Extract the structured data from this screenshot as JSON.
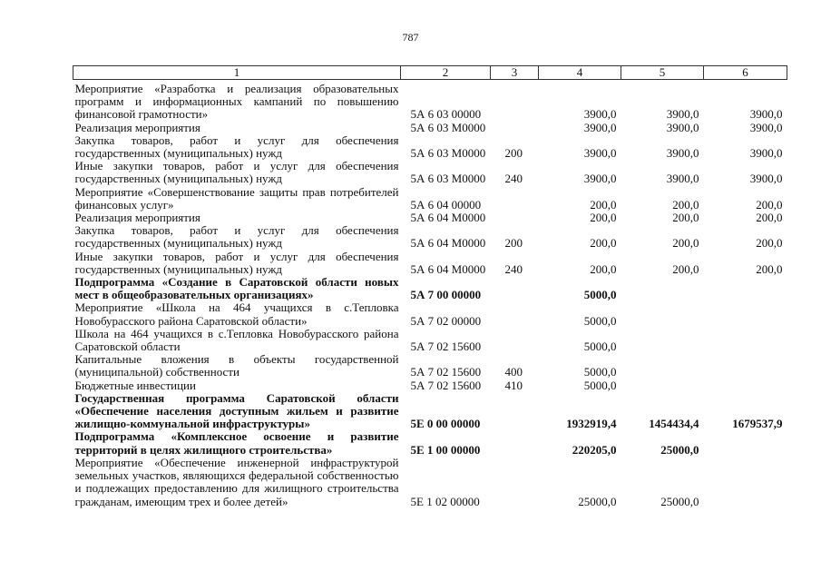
{
  "page_number": "787",
  "table": {
    "headers": [
      "1",
      "2",
      "3",
      "4",
      "5",
      "6"
    ],
    "rows": [
      {
        "name": "Мероприятие «Разработка и реализация образовательных программ и информационных кампаний по повышению финансовой грамотности»",
        "code": "5А 6 03 00000",
        "type": "",
        "v4": "3900,0",
        "v5": "3900,0",
        "v6": "3900,0",
        "bold": false
      },
      {
        "name": "Реализация мероприятия",
        "code": "5А 6 03 М0000",
        "type": "",
        "v4": "3900,0",
        "v5": "3900,0",
        "v6": "3900,0",
        "bold": false
      },
      {
        "name": "Закупка товаров, работ и услуг для обеспечения государственных (муниципальных) нужд",
        "code": "5А 6 03 М0000",
        "type": "200",
        "v4": "3900,0",
        "v5": "3900,0",
        "v6": "3900,0",
        "bold": false
      },
      {
        "name": "Иные закупки товаров, работ и услуг для обеспечения государственных (муниципальных) нужд",
        "code": "5А 6 03 М0000",
        "type": "240",
        "v4": "3900,0",
        "v5": "3900,0",
        "v6": "3900,0",
        "bold": false
      },
      {
        "name": "Мероприятие «Совершенствование защиты прав потребителей финансовых услуг»",
        "code": "5А 6 04 00000",
        "type": "",
        "v4": "200,0",
        "v5": "200,0",
        "v6": "200,0",
        "bold": false
      },
      {
        "name": "Реализация мероприятия",
        "code": "5А 6 04 М0000",
        "type": "",
        "v4": "200,0",
        "v5": "200,0",
        "v6": "200,0",
        "bold": false
      },
      {
        "name": "Закупка товаров, работ и услуг для обеспечения государственных (муниципальных) нужд",
        "code": "5А 6 04 М0000",
        "type": "200",
        "v4": "200,0",
        "v5": "200,0",
        "v6": "200,0",
        "bold": false
      },
      {
        "name": "Иные закупки товаров, работ и услуг для обеспечения государственных (муниципальных) нужд",
        "code": "5А 6 04 М0000",
        "type": "240",
        "v4": "200,0",
        "v5": "200,0",
        "v6": "200,0",
        "bold": false
      },
      {
        "name": "Подпрограмма «Создание в Саратовской области новых мест в общеобразовательных организациях»",
        "code": "5А 7 00 00000",
        "type": "",
        "v4": "5000,0",
        "v5": "",
        "v6": "",
        "bold": true
      },
      {
        "name": "Мероприятие «Школа на 464 учащихся в с.Тепловка Новобурасского района Саратовской области»",
        "code": "5А 7 02 00000",
        "type": "",
        "v4": "5000,0",
        "v5": "",
        "v6": "",
        "bold": false
      },
      {
        "name": "Школа на 464 учащихся в с.Тепловка Новобурасского района Саратовской области",
        "code": "5А 7 02 15600",
        "type": "",
        "v4": "5000,0",
        "v5": "",
        "v6": "",
        "bold": false
      },
      {
        "name": "Капитальные вложения в объекты государственной (муниципальной) собственности",
        "code": "5А 7 02 15600",
        "type": "400",
        "v4": "5000,0",
        "v5": "",
        "v6": "",
        "bold": false
      },
      {
        "name": "Бюджетные инвестиции",
        "code": "5А 7 02 15600",
        "type": "410",
        "v4": "5000,0",
        "v5": "",
        "v6": "",
        "bold": false
      },
      {
        "name": "Государственная программа Саратовской области «Обеспечение населения доступным жильем и развитие жилищно-коммунальной инфраструктуры»",
        "code": "5Е 0 00 00000",
        "type": "",
        "v4": "1932919,4",
        "v5": "1454434,4",
        "v6": "1679537,9",
        "bold": true
      },
      {
        "name": "Подпрограмма «Комплексное освоение и развитие территорий в целях жилищного строительства»",
        "code": "5Е 1 00 00000",
        "type": "",
        "v4": "220205,0",
        "v5": "25000,0",
        "v6": "",
        "bold": true
      },
      {
        "name": "Мероприятие «Обеспечение инженерной инфраструктурой земельных участков, являющихся федеральной собственностью и подлежащих предоставлению для жилищного строительства гражданам, имеющим трех и более детей»",
        "code": "5Е 1 02 00000",
        "type": "",
        "v4": "25000,0",
        "v5": "25000,0",
        "v6": "",
        "bold": false
      }
    ]
  }
}
